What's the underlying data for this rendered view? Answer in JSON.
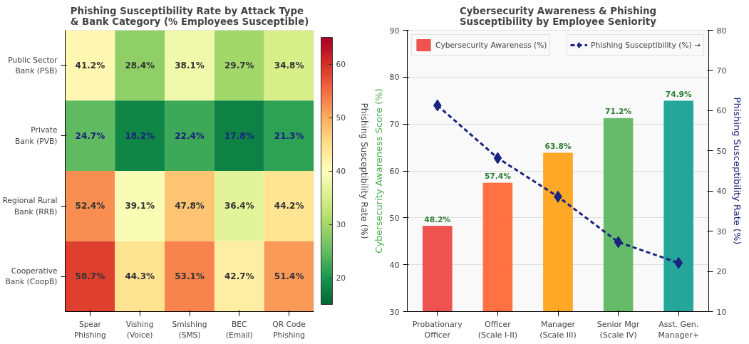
{
  "chart_data": [
    {
      "type": "heatmap",
      "title": "Phishing Susceptibility Rate by Attack Type\n& Bank Category (% Employees Susceptible)",
      "categories": [
        "Spear\nPhishing",
        "Vishing\n(Voice)",
        "Smishing\n(SMS)",
        "BEC\n(Email)",
        "QR Code\nPhishing"
      ],
      "y_categories": [
        "Public Sector\nBank (PSB)",
        "Private\nBank (PVB)",
        "Regional Rural\nBank (RRB)",
        "Cooperative\nBank (CoopB)"
      ],
      "cells": [
        [
          41.2,
          28.4,
          38.1,
          29.7,
          34.8
        ],
        [
          24.7,
          18.2,
          22.4,
          17.8,
          21.3
        ],
        [
          52.4,
          39.1,
          47.8,
          36.4,
          44.2
        ],
        [
          58.7,
          44.3,
          53.1,
          42.7,
          51.4
        ]
      ],
      "cell_labels": [
        [
          "41.2%",
          "28.4%",
          "38.1%",
          "29.7%",
          "34.8%"
        ],
        [
          "24.7%",
          "18.2%",
          "22.4%",
          "17.8%",
          "21.3%"
        ],
        [
          "52.4%",
          "39.1%",
          "47.8%",
          "36.4%",
          "44.2%"
        ],
        [
          "58.7%",
          "44.3%",
          "53.1%",
          "42.7%",
          "51.4%"
        ]
      ],
      "clim": [
        15,
        65
      ],
      "cticks": [
        20,
        30,
        40,
        50,
        60
      ],
      "clabel": "Phishing Susceptibility Rate (%)"
    },
    {
      "type": "bar",
      "title": "Cybersecurity Awareness & Phishing\nSusceptibility by Employee Seniority",
      "categories": [
        "Probationary\nOfficer",
        "Officer\n(Scale I-II)",
        "Manager\n(Scale III)",
        "Senior Mgr\n(Scale IV)",
        "Asst. Gen.\nManager+"
      ],
      "ylabel": "Cybersecurity Awareness Score (%)",
      "y2label": "Phishing Susceptibility Rate (%)",
      "ylim": [
        30,
        90
      ],
      "yticks": [
        30,
        40,
        50,
        60,
        70,
        80,
        90
      ],
      "y2lim": [
        10,
        80
      ],
      "y2ticks": [
        10,
        20,
        30,
        40,
        50,
        60,
        70,
        80
      ],
      "grid": "y",
      "legend": "top",
      "series": [
        {
          "name": "Cybersecurity Awareness (%)",
          "type": "bar",
          "colors": [
            "#ef5350",
            "#ff7043",
            "#ffa726",
            "#66bb6a",
            "#26a69a"
          ],
          "values": [
            48.2,
            57.4,
            63.8,
            71.2,
            74.9
          ],
          "value_labels": [
            "48.2%",
            "57.4%",
            "63.8%",
            "71.2%",
            "74.9%"
          ]
        },
        {
          "name": "Phishing Susceptibility (%) →",
          "type": "line",
          "axis": "y2",
          "color": "#1a237e",
          "marker": "diamond",
          "line_style": "dashed",
          "values": [
            61.3,
            48.2,
            38.6,
            27.3,
            22.1
          ]
        }
      ]
    }
  ]
}
